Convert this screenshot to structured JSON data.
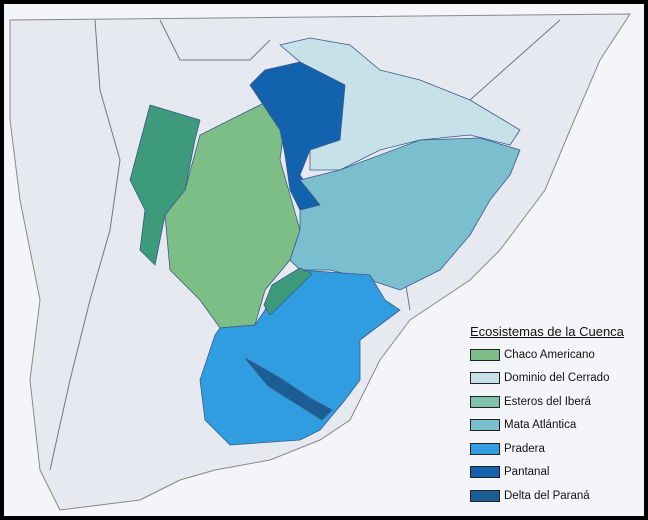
{
  "legend": {
    "title": "Ecosistemas de la Cuenca",
    "items": [
      {
        "label": "Chaco Americano",
        "color": "#7dbd86"
      },
      {
        "label": "Dominio del Cerrado",
        "color": "#c6e1e7"
      },
      {
        "label": "Esteros del Iberá",
        "color": "#7fc2ac"
      },
      {
        "label": "Mata Atlántica",
        "color": "#7bbfcf"
      },
      {
        "label": "Pradera",
        "color": "#2f9de0"
      },
      {
        "label": "Pantanal",
        "color": "#1262ad"
      },
      {
        "label": "Delta del Paraná",
        "color": "#1b5e96"
      }
    ]
  },
  "colors": {
    "land": "#e6e9ef",
    "sea": "#f4f5f8",
    "frame": "#000000",
    "chaco_humedo": "#3d9b7b"
  }
}
